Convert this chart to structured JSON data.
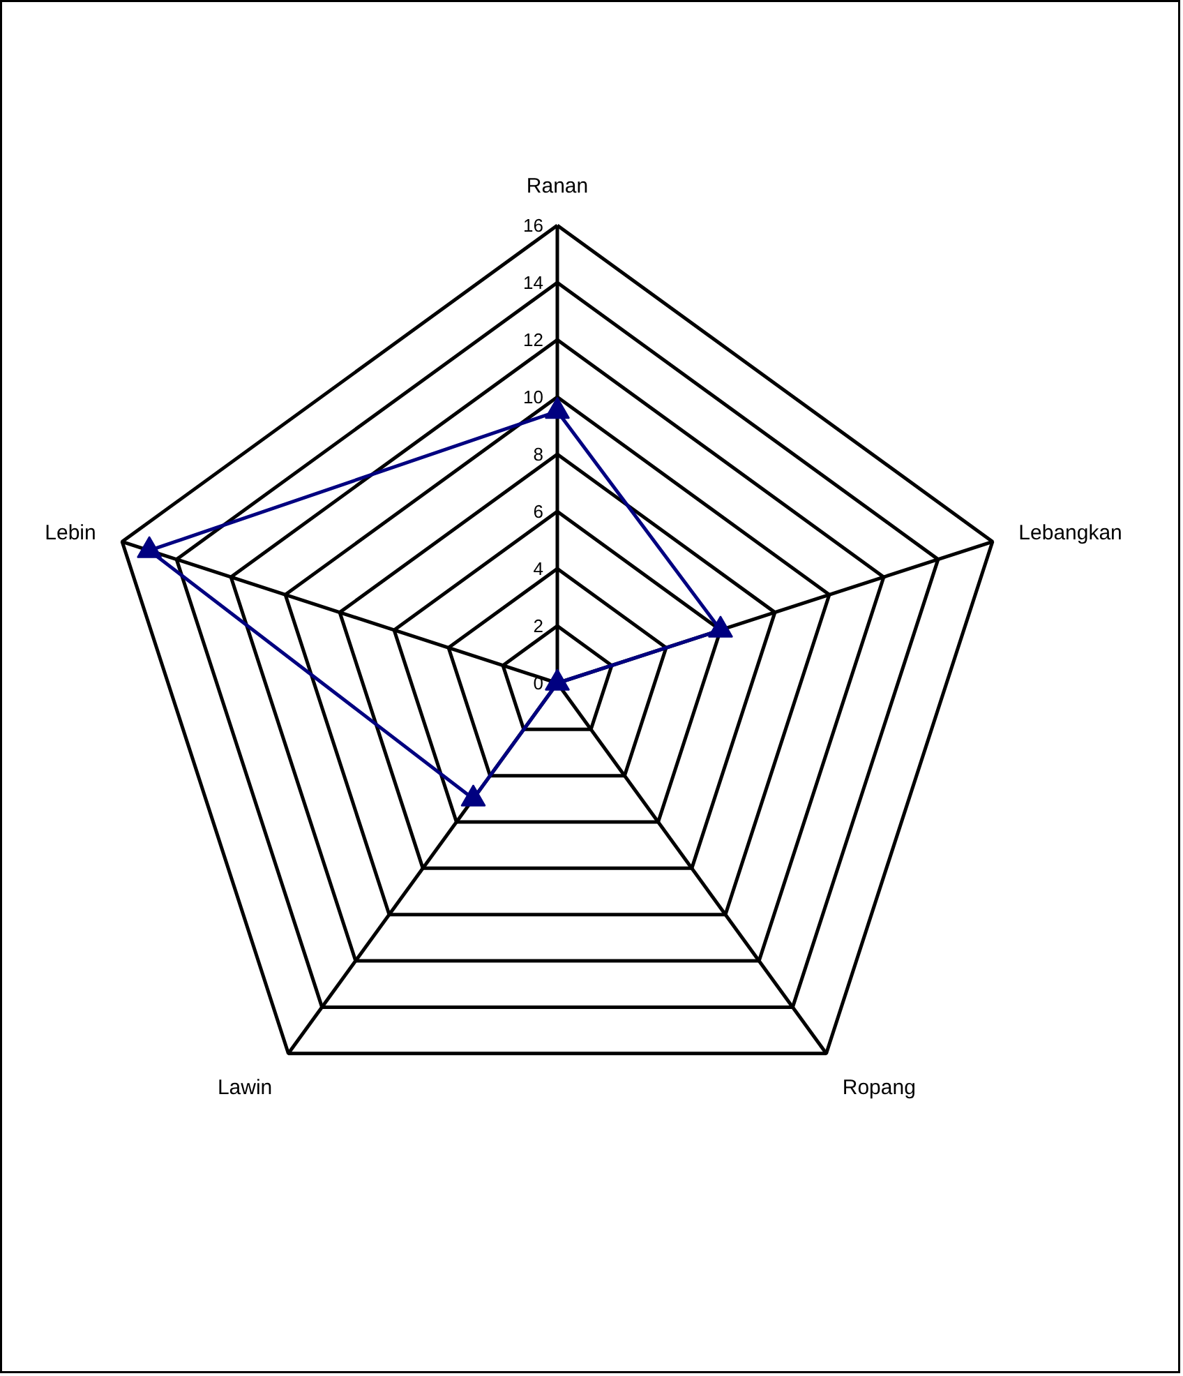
{
  "chart_data": {
    "type": "radar",
    "categories": [
      "Ranan",
      "Lebangkan",
      "Ropang",
      "Lawin",
      "Lebin"
    ],
    "series": [
      {
        "color": "#000080",
        "values": [
          9.5,
          6,
          0,
          5,
          15
        ]
      }
    ],
    "ylim": [
      0,
      16
    ],
    "yticks": [
      0,
      2,
      4,
      6,
      8,
      10,
      12,
      14,
      16
    ],
    "grid": true,
    "marker": "triangle",
    "line_style": "solid"
  }
}
